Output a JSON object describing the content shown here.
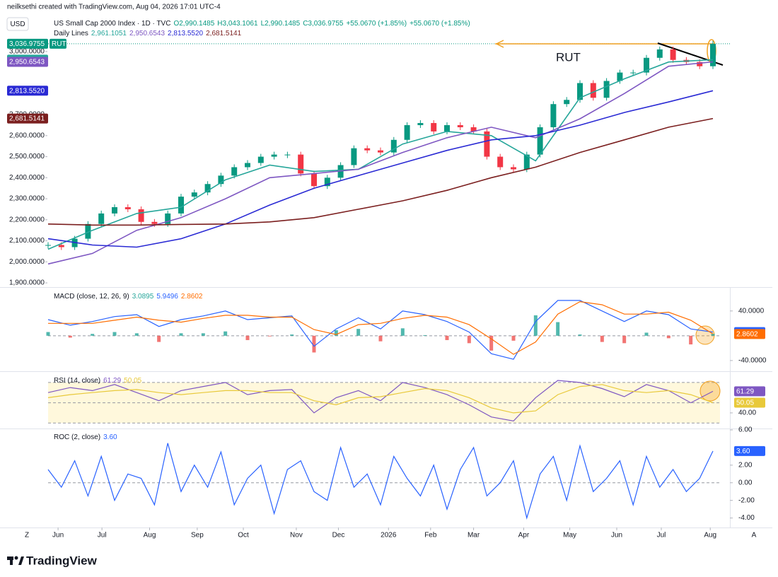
{
  "header": {
    "credit": "neilksethi created with TradingView.com, Aug 04, 2026 17:01 UTC-4",
    "currency": "USD",
    "symbol": "US Small Cap 2000 Index · 1D · TVC",
    "ohlc": [
      "O2,990.1485",
      "H3,043.1061",
      "L2,990.1485",
      "C3,036.9755",
      "+55.0670 (+1.85%)",
      "+55.0670 (+1.85%)"
    ],
    "lines_label": "Daily Lines"
  },
  "ui": {
    "left_button": "Z",
    "right_button": "A",
    "logo": "TradingView"
  },
  "chart_data": [
    {
      "type": "candlestick",
      "annotation": "RUT",
      "xlim": [
        0,
        300
      ],
      "xticks": [
        {
          "value": 4.5,
          "label": "Jun"
        },
        {
          "value": 24.3,
          "label": "Jul"
        },
        {
          "value": 45.8,
          "label": "Aug"
        },
        {
          "value": 67.3,
          "label": "Sep"
        },
        {
          "value": 88.1,
          "label": "Oct"
        },
        {
          "value": 112,
          "label": "Nov"
        },
        {
          "value": 131,
          "label": "Dec"
        },
        {
          "value": 153.6,
          "label": "2026"
        },
        {
          "value": 172.6,
          "label": "Feb"
        },
        {
          "value": 192,
          "label": "Mar"
        },
        {
          "value": 214.6,
          "label": "Apr"
        },
        {
          "value": 235.4,
          "label": "May"
        },
        {
          "value": 256.6,
          "label": "Jun"
        },
        {
          "value": 276.7,
          "label": "Jul"
        },
        {
          "value": 298.8,
          "label": "Aug"
        }
      ],
      "ylim": [
        1880,
        3060
      ],
      "yticks": [
        {
          "value": 1900,
          "label": "1,900.0000"
        },
        {
          "value": 2000,
          "label": "2,000.0000"
        },
        {
          "value": 2100,
          "label": "2,100.0000"
        },
        {
          "value": 2200,
          "label": "2,200.0000"
        },
        {
          "value": 2300,
          "label": "2,300.0000"
        },
        {
          "value": 2400,
          "label": "2,400.0000"
        },
        {
          "value": 2500,
          "label": "2,500.0000"
        },
        {
          "value": 2600,
          "label": "2,600.0000"
        },
        {
          "value": 2700,
          "label": "2,700.0000"
        },
        {
          "value": 3000,
          "label": "3,000.0000"
        }
      ],
      "up_color": "#089981",
      "down_color": "#f23645",
      "series": [
        {
          "name": "RUT",
          "color": "#089981",
          "label": "3,036.9755",
          "values": [
            2080,
            2070,
            2110,
            2180,
            2230,
            2260,
            2250,
            2190,
            2180,
            2230,
            2310,
            2330,
            2370,
            2410,
            2450,
            2470,
            2500,
            2510,
            2510,
            2420,
            2360,
            2400,
            2460,
            2540,
            2530,
            2520,
            2580,
            2650,
            2660,
            2620,
            2650,
            2640,
            2620,
            2500,
            2450,
            2440,
            2510,
            2640,
            2750,
            2770,
            2850,
            2780,
            2860,
            2900,
            2900,
            2970,
            3010,
            2960,
            2950,
            2930,
            3036.9755
          ]
        },
        {
          "color": "#26a69a",
          "label": "2,961.1051",
          "values": [
            2060,
            2150,
            2230,
            2260,
            2390,
            2460,
            2430,
            2440,
            2560,
            2620,
            2600,
            2480,
            2780,
            2870,
            2950,
            2961.1051
          ]
        },
        {
          "color": "#7e57c2",
          "label": "2,950.6543",
          "values": [
            1990,
            2040,
            2150,
            2210,
            2300,
            2400,
            2420,
            2440,
            2520,
            2590,
            2640,
            2590,
            2680,
            2800,
            2930,
            2950.6543
          ]
        },
        {
          "color": "#2a2ad4",
          "label": "2,813.5520",
          "values": [
            2110,
            2080,
            2070,
            2110,
            2180,
            2270,
            2350,
            2410,
            2470,
            2530,
            2580,
            2600,
            2650,
            2710,
            2760,
            2813.552
          ]
        },
        {
          "color": "#7b1f1f",
          "label": "2,681.5141",
          "values": [
            2180,
            2175,
            2175,
            2178,
            2180,
            2190,
            2210,
            2250,
            2290,
            2340,
            2400,
            2450,
            2520,
            2580,
            2640,
            2681.5141
          ]
        }
      ]
    },
    {
      "type": "line",
      "title": "MACD (close, 12, 26, 9)",
      "ylim": [
        -55,
        74
      ],
      "yticks": [
        {
          "value": 40,
          "label": "40.0000"
        },
        {
          "value": -40,
          "label": "-40.0000"
        }
      ],
      "ref_lines": [
        0
      ],
      "series": [
        {
          "style": "bar",
          "color": "#26a69a",
          "negative_color": "#ef5350",
          "label": "3.0895",
          "values": [
            6,
            -3,
            3,
            6,
            4,
            -10,
            4,
            4,
            7,
            -7,
            -1,
            2,
            -27,
            9,
            11,
            -9,
            12,
            1,
            -7,
            -12,
            -24,
            -8,
            33,
            22,
            2,
            -10,
            -12,
            5,
            -4,
            -14,
            3.0895
          ]
        },
        {
          "color": "#2962ff",
          "label": "5.9496",
          "values": [
            26,
            17,
            23,
            31,
            34,
            15,
            26,
            32,
            40,
            26,
            29,
            32,
            -17,
            11,
            29,
            11,
            40,
            34,
            23,
            6,
            -29,
            -38,
            23,
            57,
            57,
            40,
            23,
            40,
            34,
            11,
            5.9496
          ]
        },
        {
          "color": "#ff6d00",
          "label": "2.8602",
          "values": [
            20,
            20,
            20,
            25,
            30,
            25,
            22,
            28,
            33,
            33,
            30,
            30,
            10,
            2,
            18,
            20,
            28,
            33,
            30,
            18,
            -5,
            -30,
            -10,
            35,
            55,
            50,
            35,
            35,
            38,
            25,
            2.8602
          ]
        }
      ]
    },
    {
      "type": "line",
      "title": "RSI (14, close)",
      "ylim": [
        26,
        79
      ],
      "yticks": [
        {
          "value": 40,
          "label": "40.00"
        }
      ],
      "ref_lines": [
        30,
        50,
        70
      ],
      "band_color": "#fff8dc",
      "series": [
        {
          "color": "#7e57c2",
          "label": "61.29",
          "values": [
            60,
            65,
            62,
            68,
            60,
            52,
            62,
            66,
            70,
            58,
            62,
            63,
            40,
            55,
            62,
            52,
            70,
            65,
            58,
            48,
            36,
            32,
            55,
            72,
            70,
            64,
            56,
            68,
            62,
            50,
            61.29
          ]
        },
        {
          "color": "#e8c93a",
          "label": "50.05",
          "values": [
            55,
            58,
            60,
            62,
            63,
            60,
            58,
            60,
            62,
            62,
            60,
            60,
            52,
            48,
            55,
            56,
            60,
            64,
            62,
            55,
            45,
            40,
            42,
            58,
            66,
            68,
            62,
            60,
            62,
            58,
            50.05
          ]
        }
      ]
    },
    {
      "type": "line",
      "title": "ROC (2, close)",
      "ylim": [
        -5,
        6
      ],
      "yticks": [
        {
          "value": 6,
          "label": "6.00"
        },
        {
          "value": 2,
          "label": "2.00"
        },
        {
          "value": 0,
          "label": "0.00"
        },
        {
          "value": -2,
          "label": "-2.00"
        },
        {
          "value": -4,
          "label": "-4.00"
        }
      ],
      "ref_lines": [
        0
      ],
      "series": [
        {
          "color": "#2962ff",
          "label": "3.60",
          "values": [
            1.5,
            -0.5,
            2.5,
            -1.5,
            3.0,
            -2.0,
            1.0,
            0.5,
            -2.5,
            4.5,
            -1.0,
            2.0,
            -0.5,
            3.5,
            -2.5,
            0.5,
            2.0,
            -3.5,
            1.5,
            2.5,
            -1.0,
            -2.0,
            4.0,
            -0.5,
            1.0,
            -2.5,
            3.0,
            0.5,
            -1.5,
            2.0,
            -3.0,
            1.5,
            4.0,
            -1.5,
            0.0,
            2.5,
            -4.0,
            1.0,
            3.0,
            -2.0,
            4.2,
            -1.0,
            0.5,
            2.5,
            -2.5,
            3.0,
            -0.5,
            1.5,
            -1.0,
            0.5,
            3.6
          ]
        }
      ]
    }
  ]
}
